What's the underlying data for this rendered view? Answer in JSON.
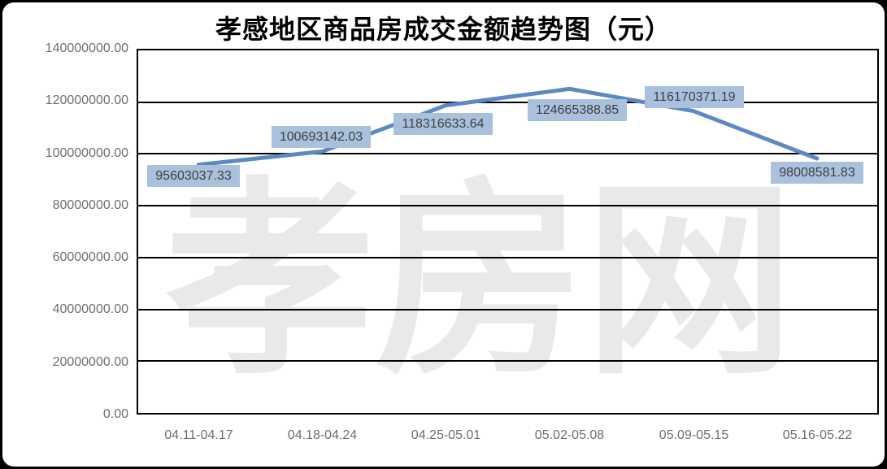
{
  "title": "孝感地区商品房成交金额趋势图（元）",
  "watermark": "孝房网",
  "colors": {
    "line": "#5d89c3",
    "label_bg": "#a9c1dd",
    "label_text": "#404040",
    "grid": "#000000",
    "tick_text": "#6d6d76",
    "watermark": "#e9e9e9"
  },
  "chart_data": {
    "type": "line",
    "title": "孝感地区商品房成交金额趋势图（元）",
    "categories": [
      "04.11-04.17",
      "04.18-04.24",
      "04.25-05.01",
      "05.02-05.08",
      "05.09-05.15",
      "05.16-05.22"
    ],
    "series": [
      {
        "name": "成交金额",
        "values": [
          95603037.33,
          100693142.03,
          118316633.64,
          124665388.85,
          116170371.19,
          98008581.83
        ]
      }
    ],
    "data_labels": [
      "95603037.33",
      "100693142.03",
      "118316633.64",
      "124665388.85",
      "116170371.19",
      "98008581.83"
    ],
    "y_ticks": [
      "140000000.00",
      "120000000.00",
      "100000000.00",
      "80000000.00",
      "60000000.00",
      "40000000.00",
      "20000000.00",
      "0.00"
    ],
    "ylim": [
      0,
      140000000
    ],
    "xlabel": "",
    "ylabel": "",
    "grid": "horizontal-black",
    "legend": "none"
  }
}
